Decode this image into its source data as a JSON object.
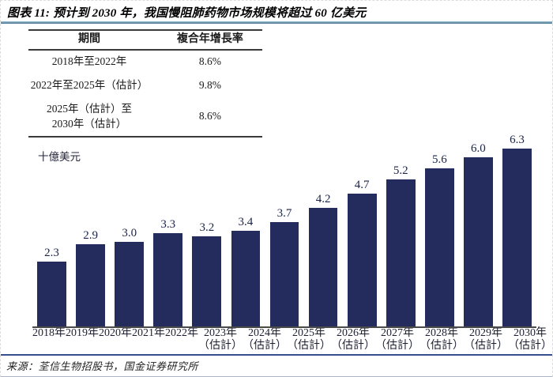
{
  "header": {
    "title": "图表 11: 预计到 2030 年，我国慢阻肺药物市场规模将超过 60 亿美元"
  },
  "cagr_table": {
    "columns": [
      "期間",
      "複合年增長率"
    ],
    "rows": [
      {
        "period_lines": [
          "2018年至2022年"
        ],
        "cagr": "8.6%"
      },
      {
        "period_lines": [
          "2022年至2025年（估計）"
        ],
        "cagr": "9.8%"
      },
      {
        "period_lines": [
          "2025年（估計）至",
          "2030年（估計）"
        ],
        "cagr": "8.6%"
      }
    ]
  },
  "chart_data": {
    "type": "bar",
    "title": "",
    "unit_label": "十億美元",
    "categories": [
      "2018年",
      "2019年",
      "2020年",
      "2021年",
      "2022年",
      "2023年",
      "2024年",
      "2025年",
      "2026年",
      "2027年",
      "2028年",
      "2029年",
      "2030年"
    ],
    "estimate_note": "（估計）",
    "estimated_from_index": 5,
    "values": [
      2.3,
      2.9,
      3.0,
      3.3,
      3.2,
      3.4,
      3.7,
      4.2,
      4.7,
      5.2,
      5.6,
      6.0,
      6.3
    ],
    "value_decimals": 1,
    "ylim": [
      0,
      6.3
    ],
    "grid": false,
    "y_axis_visible": false,
    "bar_color": "#232C5C",
    "value_label_color": "#1B2447",
    "axis_line_color": "#4A4A4A"
  },
  "footer": {
    "source": "来源：荃信生物招股书，国金证券研究所"
  },
  "colors": {
    "title_rule": "#41708E",
    "source_rule": "#35508A",
    "table_rule": "#3A3A3A"
  }
}
